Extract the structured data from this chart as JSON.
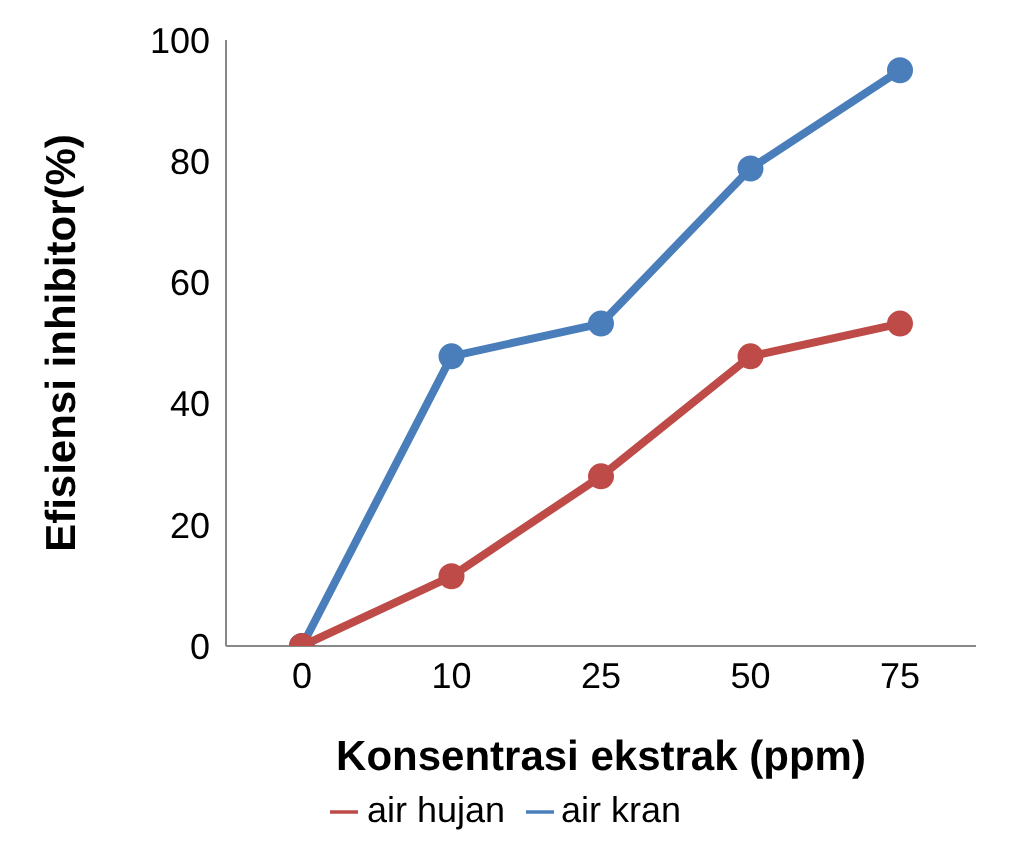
{
  "chart_data": {
    "type": "line",
    "xlabel": "Konsentrasi ekstrak (ppm)",
    "ylabel": "Efisiensi inhibitor(%)",
    "categories": [
      "0",
      "10",
      "25",
      "50",
      "75"
    ],
    "series": [
      {
        "name": "air kran",
        "color": "#4a7ebb",
        "values": [
          0,
          47.8,
          53.2,
          78.8,
          95
        ]
      },
      {
        "name": "air hujan",
        "color": "#be4b48",
        "values": [
          0,
          11.5,
          28,
          47.8,
          53.2
        ]
      }
    ],
    "ylim": [
      0,
      100
    ],
    "yticks": [
      0,
      20,
      40,
      60,
      80,
      100
    ],
    "grid": false,
    "legend": "bottom",
    "marker": "circle",
    "line_style": "solid"
  }
}
